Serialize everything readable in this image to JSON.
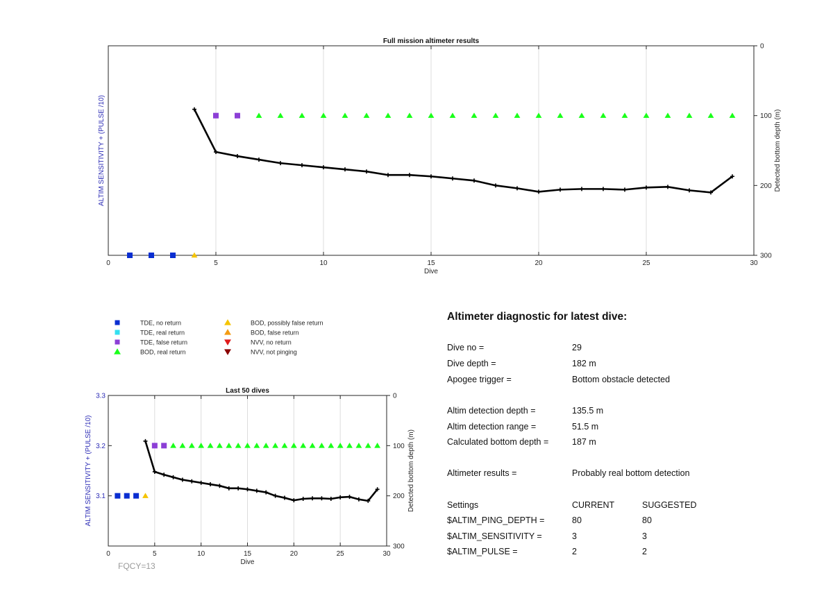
{
  "chart_data": [
    {
      "type": "line",
      "title": "Full mission altimeter results",
      "xlabel": "Dive",
      "ylabel_left": "ALTIM SENSITIVITY + (PULSE /10)",
      "ylabel_right": "Detected bottom depth (m)",
      "xlim": [
        0,
        30
      ],
      "ylim_right": [
        0,
        300
      ],
      "y_right_reversed": true,
      "x_ticks": [
        "0",
        "5",
        "10",
        "15",
        "20",
        "25",
        "30"
      ],
      "y_right_ticks": [
        "0",
        "100",
        "200",
        "300"
      ],
      "grid": "x",
      "series": [
        {
          "name": "Detected bottom depth",
          "style": "black line with markers",
          "x": [
            4,
            5,
            6,
            7,
            8,
            9,
            10,
            11,
            12,
            13,
            14,
            15,
            16,
            17,
            18,
            19,
            20,
            21,
            22,
            23,
            24,
            25,
            26,
            27,
            28,
            29
          ],
          "values": [
            91,
            152,
            158,
            163,
            168,
            171,
            174,
            177,
            180,
            185,
            185,
            187,
            190,
            193,
            200,
            204,
            209,
            206,
            205,
            205,
            206,
            203,
            202,
            207,
            210,
            187
          ]
        },
        {
          "name": "TDE, no return",
          "marker": "square",
          "color": "#0a2ed1",
          "x": [
            1,
            2,
            3
          ],
          "y_right": [
            300,
            300,
            300
          ]
        },
        {
          "name": "BOD, possibly false return",
          "marker": "triangle-up",
          "color": "#f5c400",
          "x": [
            4
          ],
          "y_right": [
            300
          ]
        },
        {
          "name": "TDE, false return",
          "marker": "square",
          "color": "#8c3fd6",
          "x": [
            5,
            6
          ],
          "y_right": [
            100,
            100
          ]
        },
        {
          "name": "BOD, real return",
          "marker": "triangle-up",
          "color": "#1aff1a",
          "x": [
            7,
            8,
            9,
            10,
            11,
            12,
            13,
            14,
            15,
            16,
            17,
            18,
            19,
            20,
            21,
            22,
            23,
            24,
            25,
            26,
            27,
            28,
            29
          ],
          "y_right": [
            100,
            100,
            100,
            100,
            100,
            100,
            100,
            100,
            100,
            100,
            100,
            100,
            100,
            100,
            100,
            100,
            100,
            100,
            100,
            100,
            100,
            100,
            100
          ]
        }
      ]
    },
    {
      "type": "line",
      "title": "Last 50 dives",
      "xlabel": "Dive",
      "ylabel_left": "ALTIM SENSITIVITY + (PULSE /10)",
      "ylabel_right": "Detected bottom depth (m)",
      "xlim": [
        0,
        30
      ],
      "ylim_left": [
        3.0,
        3.3
      ],
      "ylim_right": [
        0,
        300
      ],
      "y_right_reversed": true,
      "x_ticks": [
        "0",
        "5",
        "10",
        "15",
        "20",
        "25",
        "30"
      ],
      "y_left_ticks": [
        "3.1",
        "3.2",
        "3.3"
      ],
      "y_right_ticks": [
        "0",
        "100",
        "200",
        "300"
      ],
      "grid": "x",
      "annotation": "FQCY=13",
      "series": [
        {
          "name": "Detected bottom depth",
          "style": "black line with markers",
          "x": [
            4,
            5,
            6,
            7,
            8,
            9,
            10,
            11,
            12,
            13,
            14,
            15,
            16,
            17,
            18,
            19,
            20,
            21,
            22,
            23,
            24,
            25,
            26,
            27,
            28,
            29
          ],
          "values": [
            91,
            152,
            158,
            163,
            168,
            171,
            174,
            177,
            180,
            185,
            185,
            187,
            190,
            193,
            200,
            204,
            209,
            206,
            205,
            205,
            206,
            203,
            202,
            207,
            210,
            187
          ]
        },
        {
          "name": "TDE, no return",
          "marker": "square",
          "color": "#0a2ed1",
          "x": [
            1,
            2,
            3
          ],
          "y_left": [
            3.1,
            3.1,
            3.1
          ]
        },
        {
          "name": "BOD, possibly false return",
          "marker": "triangle-up",
          "color": "#f5c400",
          "x": [
            4
          ],
          "y_left": [
            3.1
          ]
        },
        {
          "name": "TDE, false return",
          "marker": "square",
          "color": "#8c3fd6",
          "x": [
            5,
            6
          ],
          "y_left": [
            3.2,
            3.2
          ]
        },
        {
          "name": "BOD, real return",
          "marker": "triangle-up",
          "color": "#1aff1a",
          "x": [
            7,
            8,
            9,
            10,
            11,
            12,
            13,
            14,
            15,
            16,
            17,
            18,
            19,
            20,
            21,
            22,
            23,
            24,
            25,
            26,
            27,
            28,
            29
          ],
          "y_left": [
            3.2,
            3.2,
            3.2,
            3.2,
            3.2,
            3.2,
            3.2,
            3.2,
            3.2,
            3.2,
            3.2,
            3.2,
            3.2,
            3.2,
            3.2,
            3.2,
            3.2,
            3.2,
            3.2,
            3.2,
            3.2,
            3.2,
            3.2
          ]
        }
      ]
    }
  ],
  "legend": {
    "items": [
      {
        "label": "TDE, no return",
        "marker": "square",
        "color": "#0a2ed1"
      },
      {
        "label": "TDE, real return",
        "marker": "square",
        "color": "#33e0f0"
      },
      {
        "label": "TDE, false return",
        "marker": "square",
        "color": "#8c3fd6"
      },
      {
        "label": "BOD, real return",
        "marker": "triangle-up",
        "color": "#1aff1a"
      },
      {
        "label": "BOD, possibly false return",
        "marker": "triangle-up",
        "color": "#f5c400"
      },
      {
        "label": "BOD, false return",
        "marker": "triangle-up",
        "color": "#f39c12"
      },
      {
        "label": "NVV, no return",
        "marker": "triangle-down",
        "color": "#e01b1b"
      },
      {
        "label": "NVV, not pinging",
        "marker": "triangle-down",
        "color": "#8b0000"
      }
    ]
  },
  "colors": {
    "axis_label_left": "#2b2bb5",
    "line": "#000000",
    "grid": "#dcdcdc",
    "annotation": "#9a9a9a"
  },
  "diagnostic": {
    "title": "Altimeter diagnostic for latest dive:",
    "rows": [
      {
        "label": "Dive no =",
        "value": "29"
      },
      {
        "label": "Dive depth =",
        "value": "182 m"
      },
      {
        "label": "Apogee trigger =",
        "value": "Bottom obstacle detected"
      },
      {
        "label": "Altim detection depth =",
        "value": "135.5 m"
      },
      {
        "label": "Altim detection range =",
        "value": "51.5 m"
      },
      {
        "label": "Calculated bottom depth =",
        "value": "187 m"
      },
      {
        "label": "Altimeter results =",
        "value": "Probably real bottom detection"
      }
    ],
    "settings": {
      "header": {
        "label": "Settings",
        "current": "CURRENT",
        "suggested": "SUGGESTED"
      },
      "rows": [
        {
          "label": "$ALTIM_PING_DEPTH =",
          "current": "80",
          "suggested": "80"
        },
        {
          "label": "$ALTIM_SENSITIVITY =",
          "current": "3",
          "suggested": "3"
        },
        {
          "label": "$ALTIM_PULSE =",
          "current": "2",
          "suggested": "2"
        }
      ]
    }
  }
}
